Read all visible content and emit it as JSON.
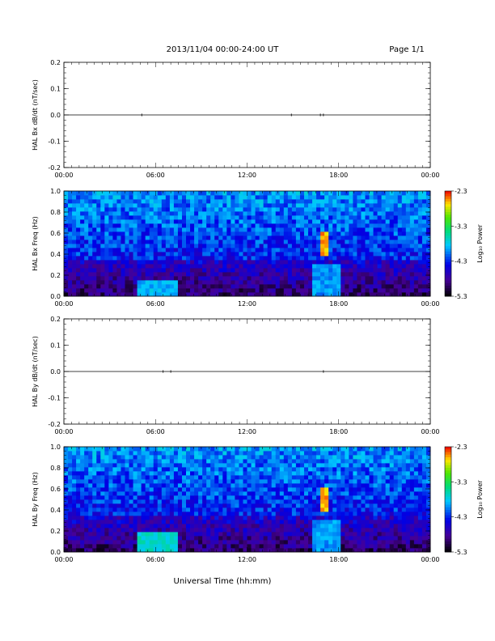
{
  "header": {
    "date_range": "2013/11/04  00:00-24:00 UT",
    "page": "Page 1/1"
  },
  "x_axis": {
    "title": "Universal Time (hh:mm)",
    "tick_labels": [
      "00:00",
      "06:00",
      "12:00",
      "18:00",
      "00:00"
    ]
  },
  "colorbar": {
    "label": "Log₁₀ Power",
    "tick_labels": [
      "-2.3",
      "-3.3",
      "-4.3",
      "-5.3"
    ]
  },
  "chart_data": [
    {
      "type": "line",
      "ylabel": "HAL Bx dB/dt (nT/sec)",
      "xlim": [
        0,
        24
      ],
      "ylim": [
        -0.2,
        0.2
      ],
      "y_tick_labels": [
        "0.2",
        "0.1",
        "0.0",
        "-0.1",
        "-0.2"
      ],
      "baseline": 0.0,
      "spikes": [
        {
          "x": 5.1,
          "y": 0.0
        },
        {
          "x": 14.9,
          "y": 0.0
        },
        {
          "x": 16.8,
          "y": 0.004
        },
        {
          "x": 17.0,
          "y": -0.003
        }
      ]
    },
    {
      "type": "heatmap",
      "ylabel": "HAL Bx Freq (Hz)",
      "xlim": [
        0,
        24
      ],
      "ylim": [
        0,
        1.0
      ],
      "y_tick_labels": [
        "1.0",
        "0.8",
        "0.6",
        "0.4",
        "0.2",
        "0.0"
      ],
      "color_range": [
        -5.3,
        -2.3
      ],
      "features": [
        {
          "x": [
            16.9,
            17.2
          ],
          "y": [
            0.4,
            0.62
          ],
          "value": -2.6
        },
        {
          "x": [
            4.8,
            7.5
          ],
          "y": [
            0.0,
            0.15
          ],
          "value": -3.9
        },
        {
          "x": [
            16.3,
            18.0
          ],
          "y": [
            0.0,
            0.3
          ],
          "value": -4.0
        }
      ]
    },
    {
      "type": "line",
      "ylabel": "HAL By dB/dt (nT/sec)",
      "xlim": [
        0,
        24
      ],
      "ylim": [
        -0.2,
        0.2
      ],
      "y_tick_labels": [
        "0.2",
        "0.1",
        "0.0",
        "-0.1",
        "-0.2"
      ],
      "baseline": 0.0,
      "spikes": [
        {
          "x": 6.5,
          "y": 0.002
        },
        {
          "x": 7.0,
          "y": -0.002
        },
        {
          "x": 17.0,
          "y": 0.003
        }
      ]
    },
    {
      "type": "heatmap",
      "ylabel": "HAL By Freq (Hz)",
      "xlim": [
        0,
        24
      ],
      "ylim": [
        0,
        1.0
      ],
      "y_tick_labels": [
        "1.0",
        "0.8",
        "0.6",
        "0.4",
        "0.2",
        "0.0"
      ],
      "color_range": [
        -5.3,
        -2.3
      ],
      "features": [
        {
          "x": [
            16.9,
            17.2
          ],
          "y": [
            0.4,
            0.62
          ],
          "value": -2.6
        },
        {
          "x": [
            4.8,
            7.5
          ],
          "y": [
            0.0,
            0.2
          ],
          "value": -3.7
        },
        {
          "x": [
            16.3,
            18.0
          ],
          "y": [
            0.0,
            0.3
          ],
          "value": -4.0
        }
      ]
    }
  ]
}
